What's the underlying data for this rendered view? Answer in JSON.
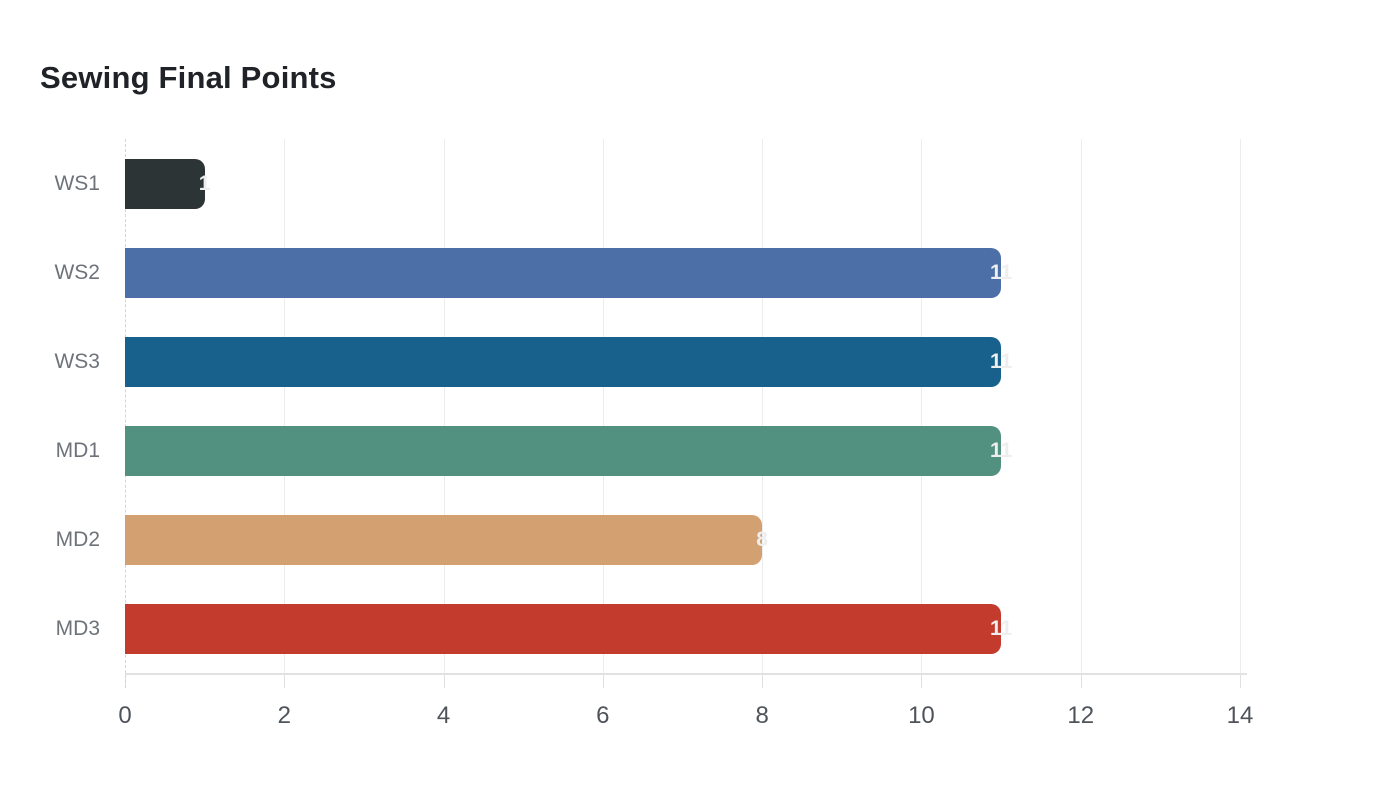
{
  "title": "Sewing Final Points",
  "chart_data": {
    "type": "bar",
    "orientation": "horizontal",
    "title": "Sewing Final Points",
    "categories": [
      "WS1",
      "WS2",
      "WS3",
      "MD1",
      "MD2",
      "MD3"
    ],
    "values": [
      1,
      11,
      11,
      11,
      8,
      11
    ],
    "value_labels": [
      "1",
      "11",
      "11",
      "11",
      "8",
      "11"
    ],
    "bar_colors": [
      "#2c3436",
      "#4b6fa6",
      "#17618c",
      "#52907f",
      "#d3a171",
      "#c23b2d"
    ],
    "xlim": [
      0,
      14
    ],
    "x_ticks": [
      0,
      2,
      4,
      6,
      8,
      10,
      12,
      14
    ],
    "xlabel": "",
    "ylabel": "",
    "grid": "vertical",
    "legend": "none"
  },
  "colors": {
    "background": "#ffffff",
    "title_text": "#1f2227",
    "category_label": "#6e737a",
    "tick_label": "#4f545a",
    "gridline": "#ececec",
    "axis_line": "#e2e2e2",
    "zero_line_dashed": "#d4d4d4",
    "value_label": "#eeeeee"
  }
}
